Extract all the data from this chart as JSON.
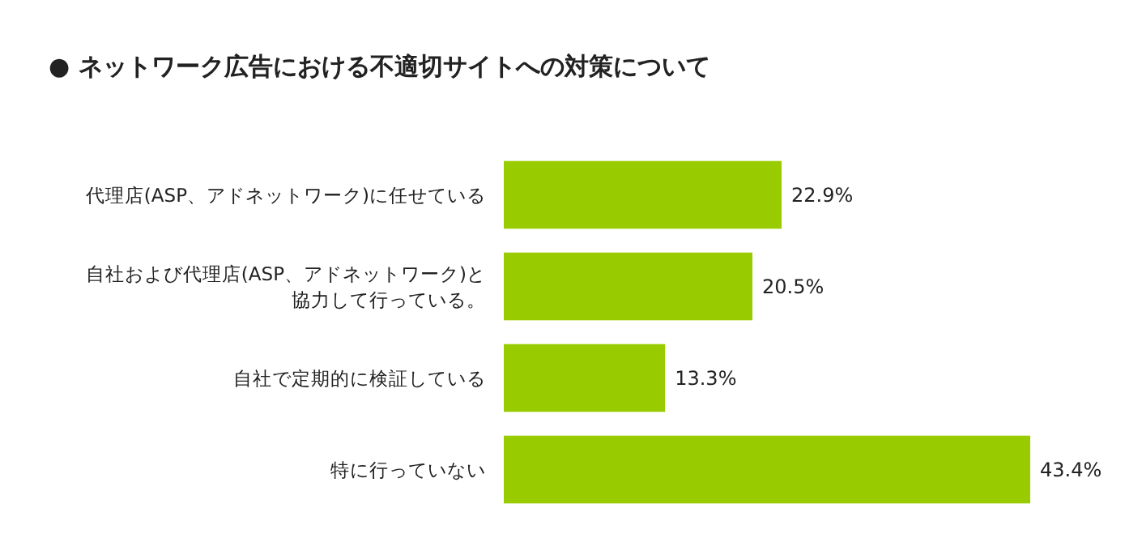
{
  "chart_data": {
    "type": "bar",
    "orientation": "horizontal",
    "title": "● ネットワーク広告における不適切サイトへの対策について",
    "categories": [
      "代理店(ASP、アドネットワーク)に任せている",
      "自社および代理店(ASP、アドネットワーク)と協力して行っている。",
      "自社で定期的に検証している",
      "特に行っていない"
    ],
    "values": [
      22.9,
      20.5,
      13.3,
      43.4
    ],
    "color": "#99cc00",
    "value_labels": [
      "22.9%",
      "20.5%",
      "13.3%",
      "43.4%"
    ]
  }
}
